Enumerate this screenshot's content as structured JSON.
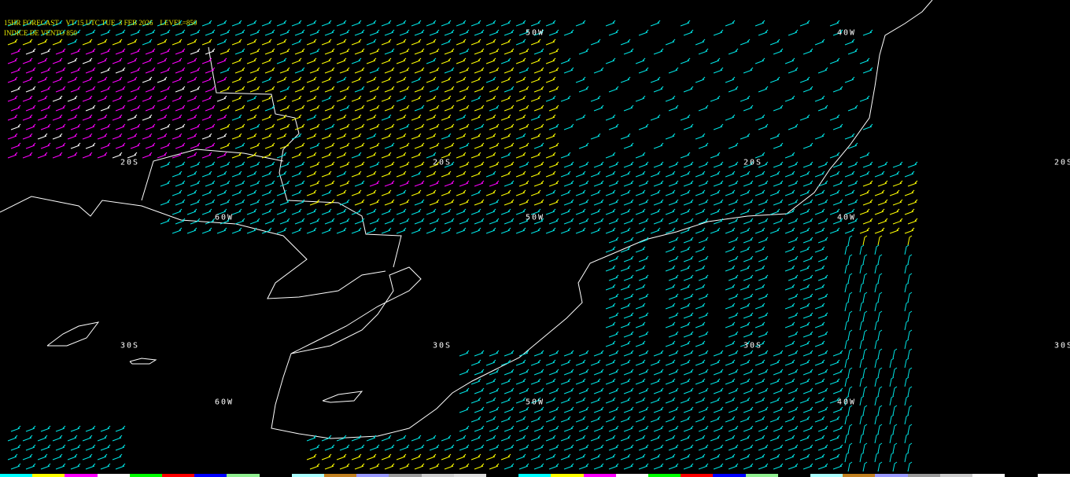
{
  "header": {
    "line1": "15HR FORECAST    VT 15 UTC TUE  3 FEB 2026    LEVEL=850",
    "line2": "INDICE DE VENTO 850"
  },
  "grid_labels": {
    "lon_top": [
      "50W",
      "40W"
    ],
    "lat_20": [
      "20S",
      "20S",
      "20S",
      "20S"
    ],
    "lon_mid": [
      "60W",
      "50W",
      "40W"
    ],
    "lat_30": [
      "30S",
      "30S",
      "30S",
      "30S"
    ],
    "lon_bottom": [
      "60W",
      "50W",
      "40W"
    ]
  },
  "colors": {
    "background": "#000000",
    "coastline": "#ffffff",
    "header_text": "#e8e800",
    "barb_low": "#00e5e5",
    "barb_mid": "#ffff00",
    "barb_high": "#ff00ff",
    "barb_max": "#ffffff"
  },
  "colorbar": [
    "#00ffff",
    "#ffff00",
    "#ff00ff",
    "#ffffff",
    "#00ff00",
    "#ff0000",
    "#0000ff",
    "#90ee90",
    "#000000",
    "#aaffff",
    "#c08020",
    "#9999ff",
    "#999999",
    "#cccccc",
    "#dddddd",
    "#000000",
    "#00ffff",
    "#ffff00",
    "#ff00ff",
    "#ffffff",
    "#00ff00",
    "#ff0000",
    "#0000ff",
    "#90ee90",
    "#000000",
    "#aaffff",
    "#c08020",
    "#9999ff",
    "#999999",
    "#cccccc",
    "#ffffff",
    "#000000",
    "#ffffff"
  ]
}
